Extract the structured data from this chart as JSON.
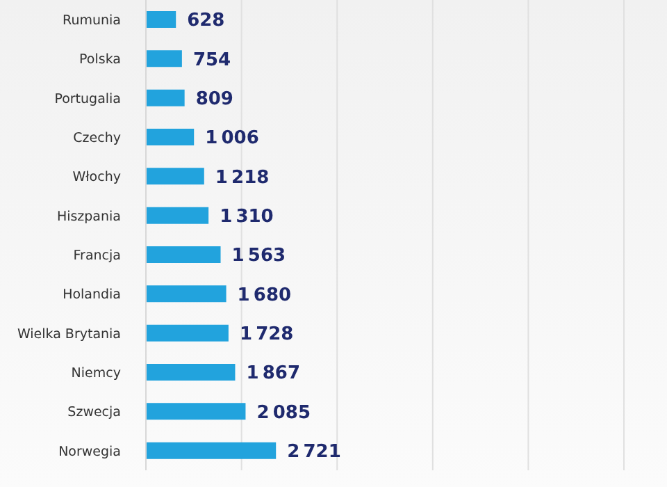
{
  "chart_data": {
    "type": "bar",
    "orientation": "horizontal",
    "categories": [
      "Rumunia",
      "Polska",
      "Portugalia",
      "Czechy",
      "Włochy",
      "Hiszpania",
      "Francja",
      "Holandia",
      "Wielka Brytania",
      "Niemcy",
      "Szwecja",
      "Norwegia"
    ],
    "values": [
      628,
      754,
      809,
      1006,
      1218,
      1310,
      1563,
      1680,
      1728,
      1867,
      2085,
      2721
    ],
    "color": "#22a3dd",
    "xlim": [
      0,
      10000
    ],
    "grid": "x",
    "tick_labels": false,
    "data_labels": true
  }
}
